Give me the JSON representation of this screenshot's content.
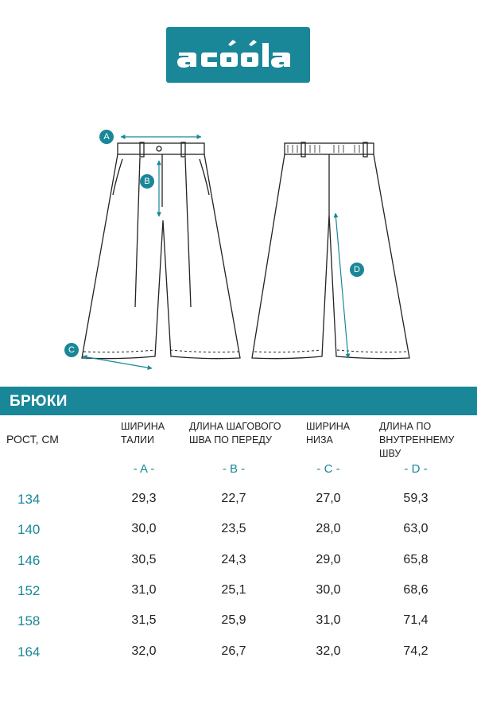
{
  "brand": {
    "logo_text": "acoola",
    "accent_color": "#1a8799"
  },
  "diagram": {
    "markers": [
      "A",
      "B",
      "C",
      "D"
    ]
  },
  "section_title": "БРЮКИ",
  "table": {
    "row_header": "РОСТ, СМ",
    "columns": [
      {
        "title": "ШИРИНА\nТАЛИИ",
        "code": "- A -"
      },
      {
        "title": "ДЛИНА ШАГОВОГО\nШВА ПО ПЕРЕДУ",
        "code": "- B -"
      },
      {
        "title": "ШИРИНА\nНИЗА",
        "code": "- C -"
      },
      {
        "title": "ДЛИНА ПО\nВНУТРЕННЕМУ ШВУ",
        "code": "- D -"
      }
    ],
    "rows": [
      {
        "height": "134",
        "values": [
          "29,3",
          "22,7",
          "27,0",
          "59,3"
        ]
      },
      {
        "height": "140",
        "values": [
          "30,0",
          "23,5",
          "28,0",
          "63,0"
        ]
      },
      {
        "height": "146",
        "values": [
          "30,5",
          "24,3",
          "29,0",
          "65,8"
        ]
      },
      {
        "height": "152",
        "values": [
          "31,0",
          "25,1",
          "30,0",
          "68,6"
        ]
      },
      {
        "height": "158",
        "values": [
          "31,5",
          "25,9",
          "31,0",
          "71,4"
        ]
      },
      {
        "height": "164",
        "values": [
          "32,0",
          "26,7",
          "32,0",
          "74,2"
        ]
      }
    ]
  }
}
